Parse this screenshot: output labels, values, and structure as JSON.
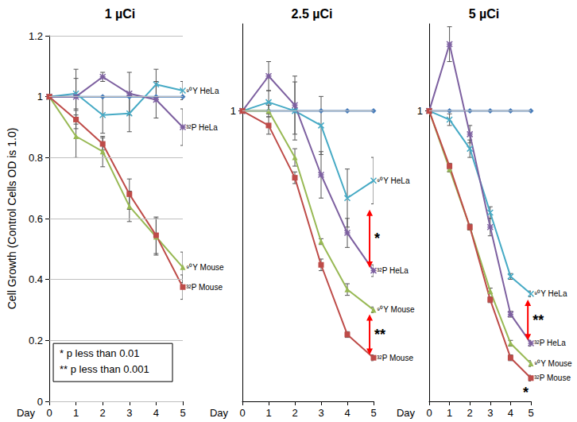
{
  "chart_data": [
    {
      "type": "line",
      "title": "1 µCi",
      "xlabel": "Day",
      "ylabel": "Cell Growth (Control Cells OD is 1.0)",
      "x": [
        0,
        1,
        2,
        3,
        4,
        5
      ],
      "xlim": [
        0,
        5
      ],
      "xticks": [
        0,
        1,
        2,
        3,
        4,
        5
      ],
      "ylim": [
        0,
        1.2
      ],
      "yticks": [
        0,
        0.2,
        0.4,
        0.6,
        0.8,
        1,
        1.2
      ],
      "grid": true,
      "series": [
        {
          "color": "#4a7ebb",
          "marker": "diamond",
          "values": [
            1,
            1,
            1,
            1,
            1,
            1
          ],
          "errors": [
            0,
            0,
            0,
            0,
            0,
            0
          ]
        },
        {
          "name": "⁹⁰Y HeLa",
          "color": "#46aac5",
          "marker": "x",
          "values": [
            1,
            1.01,
            0.94,
            0.945,
            1.04,
            1.02
          ],
          "errors": [
            0,
            0.05,
            0.06,
            0.06,
            0.05,
            0.03
          ]
        },
        {
          "name": "³²P HeLa",
          "color": "#7d60a0",
          "marker": "asterisk",
          "values": [
            1,
            1.0,
            1.065,
            1.01,
            0.99,
            0.9
          ],
          "errors": [
            0,
            0.09,
            0.015,
            0.07,
            0.06,
            0.06
          ]
        },
        {
          "name": "⁹⁰Y Mouse",
          "color": "#98b954",
          "marker": "triangle",
          "values": [
            1,
            0.87,
            0.82,
            0.64,
            0.54,
            0.44
          ],
          "errors": [
            0,
            0.07,
            0.05,
            0.05,
            0.06,
            0.05
          ]
        },
        {
          "name": "³²P Mouse",
          "color": "#be4b48",
          "marker": "square",
          "values": [
            1,
            0.925,
            0.845,
            0.68,
            0.545,
            0.375
          ],
          "errors": [
            0,
            0.03,
            0.02,
            0.05,
            0.06,
            0.04
          ]
        }
      ],
      "annotations": [
        {
          "texts": [
            "* p less than 0.01",
            "** p less than 0.001"
          ],
          "x": 0.15,
          "y": 0.19
        }
      ]
    },
    {
      "type": "line",
      "title": "2.5 µCi",
      "xlabel": "Day",
      "x": [
        0,
        1,
        2,
        3,
        4,
        5
      ],
      "xlim": [
        0,
        5
      ],
      "xticks": [
        0,
        1,
        2,
        3,
        4,
        5
      ],
      "ylim": [
        0,
        1.3
      ],
      "yticks": [
        1
      ],
      "grid": true,
      "series": [
        {
          "color": "#4a7ebb",
          "marker": "diamond",
          "values": [
            1,
            1,
            1,
            1,
            1,
            1
          ],
          "errors": [
            0,
            0,
            0,
            0,
            0,
            0
          ]
        },
        {
          "name": "⁹⁰Y HeLa",
          "color": "#46aac5",
          "marker": "x",
          "values": [
            1,
            1.03,
            1.0,
            0.95,
            0.7,
            0.76
          ],
          "errors": [
            0,
            0.04,
            0.1,
            0.1,
            0.1,
            0.08
          ]
        },
        {
          "name": "³²P HeLa",
          "color": "#7d60a0",
          "marker": "asterisk",
          "values": [
            1,
            1.12,
            1.02,
            0.78,
            0.58,
            0.45
          ],
          "errors": [
            0,
            0.05,
            0.1,
            0.08,
            0.05,
            0.02
          ]
        },
        {
          "name": "⁹⁰Y Mouse",
          "color": "#98b954",
          "marker": "triangle",
          "values": [
            1,
            1.0,
            0.84,
            0.55,
            0.385,
            0.315
          ],
          "errors": [
            0,
            0.02,
            0.03,
            0.01,
            0.02,
            0.01
          ]
        },
        {
          "name": "³²P Mouse",
          "color": "#be4b48",
          "marker": "square",
          "values": [
            1,
            0.95,
            0.77,
            0.47,
            0.23,
            0.15
          ],
          "errors": [
            0,
            0.03,
            0.02,
            0.02,
            0.01,
            0.01
          ]
        }
      ],
      "annotations": [
        {
          "text": "*",
          "x": 4.85,
          "y_from": 0.66,
          "y_to": 0.46
        },
        {
          "text": "**",
          "x": 4.85,
          "y_from": 0.3,
          "y_to": 0.16
        }
      ]
    },
    {
      "type": "line",
      "title": "5 µCi",
      "xlabel": "Day",
      "x": [
        0,
        1,
        2,
        3,
        4,
        5
      ],
      "xlim": [
        0,
        5
      ],
      "xticks": [
        0,
        1,
        2,
        3,
        4,
        5
      ],
      "ylim": [
        0,
        1.3
      ],
      "yticks": [
        1
      ],
      "grid": true,
      "series": [
        {
          "color": "#4a7ebb",
          "marker": "diamond",
          "values": [
            1,
            1,
            1,
            1,
            1,
            1
          ],
          "errors": [
            0,
            0,
            0,
            0,
            0,
            0
          ]
        },
        {
          "name": "⁹⁰Y HeLa",
          "color": "#46aac5",
          "marker": "x",
          "values": [
            1,
            0.97,
            0.87,
            0.65,
            0.43,
            0.37
          ],
          "errors": [
            0,
            0.02,
            0.03,
            0.02,
            0.01,
            0.01
          ]
        },
        {
          "name": "³²P HeLa",
          "color": "#7d60a0",
          "marker": "asterisk",
          "values": [
            1,
            1.23,
            0.92,
            0.6,
            0.3,
            0.2
          ],
          "errors": [
            0,
            0.06,
            0.03,
            0.03,
            0.01,
            0.01
          ]
        },
        {
          "name": "⁹⁰Y Mouse",
          "color": "#98b954",
          "marker": "triangle",
          "values": [
            1,
            0.8,
            0.6,
            0.38,
            0.2,
            0.13
          ],
          "errors": [
            0,
            0.01,
            0.01,
            0.01,
            0.01,
            0.01
          ]
        },
        {
          "name": "³²P Mouse",
          "color": "#be4b48",
          "marker": "square",
          "values": [
            1,
            0.81,
            0.6,
            0.35,
            0.15,
            0.08
          ],
          "errors": [
            0,
            0.01,
            0.01,
            0.01,
            0.01,
            0.01
          ]
        }
      ],
      "annotations": [
        {
          "text": "**",
          "x": 4.85,
          "y_from": 0.35,
          "y_to": 0.21
        },
        {
          "text": "*",
          "x": 4.75,
          "y": 0.03
        }
      ]
    }
  ]
}
